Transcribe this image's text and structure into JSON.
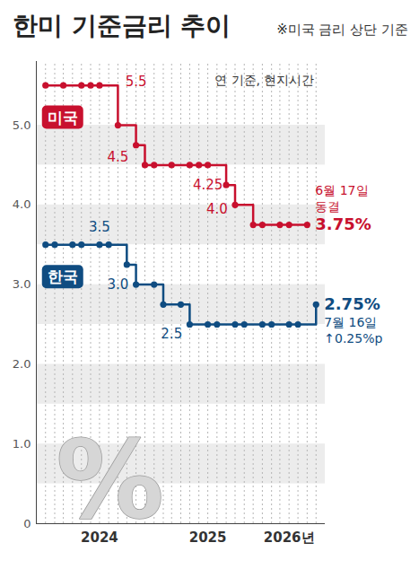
{
  "chart_data": {
    "type": "line",
    "title": "한미 기준금리 추이",
    "note": "※미국 금리 상단 기준",
    "subtitle": "연 기준, 현지시간",
    "symbol": "%",
    "xlim": [
      "2023-12",
      "2026-08"
    ],
    "xticks": [
      {
        "value": "2024-07",
        "label": "2024"
      },
      {
        "value": "2025-07",
        "label": "2025"
      },
      {
        "value": "2026-04",
        "label": "2026년"
      }
    ],
    "ylim": [
      0,
      5.8
    ],
    "yticks": [
      0,
      {
        "value": 1,
        "label": "1.0"
      },
      {
        "value": 2,
        "label": "2.0"
      },
      {
        "value": 3,
        "label": "3.0"
      },
      {
        "value": 4,
        "label": "4.0"
      },
      {
        "value": 5,
        "label": "5.0"
      }
    ],
    "grid": true,
    "series": [
      {
        "name": "미국",
        "color": "#c8102e",
        "line_style": "step",
        "marker": "circle",
        "x": [
          "2024-01",
          "2024-03",
          "2024-05",
          "2024-06",
          "2024-07",
          "2024-09",
          "2024-11",
          "2024-12",
          "2025-01",
          "2025-03",
          "2025-05",
          "2025-06",
          "2025-07",
          "2025-09",
          "2025-10",
          "2025-12",
          "2026-01",
          "2026-03",
          "2026-04",
          "2026-06"
        ],
        "values": [
          5.5,
          5.5,
          5.5,
          5.5,
          5.5,
          5.0,
          4.75,
          4.5,
          4.5,
          4.5,
          4.5,
          4.5,
          4.5,
          4.25,
          4.0,
          3.75,
          3.75,
          3.75,
          3.75,
          3.75
        ],
        "end_label": "3.75%",
        "end_note": [
          "6월 17일",
          "동결"
        ]
      },
      {
        "name": "한국",
        "color": "#0f4c81",
        "line_style": "step",
        "marker": "circle",
        "x": [
          "2024-01",
          "2024-02",
          "2024-04",
          "2024-05",
          "2024-07",
          "2024-08",
          "2024-10",
          "2024-11",
          "2025-01",
          "2025-02",
          "2025-04",
          "2025-05",
          "2025-07",
          "2025-08",
          "2025-10",
          "2025-11",
          "2026-01",
          "2026-02",
          "2026-04",
          "2026-05",
          "2026-07"
        ],
        "values": [
          3.5,
          3.5,
          3.5,
          3.5,
          3.5,
          3.5,
          3.25,
          3.0,
          3.0,
          2.75,
          2.75,
          2.5,
          2.5,
          2.5,
          2.5,
          2.5,
          2.5,
          2.5,
          2.5,
          2.5,
          2.75
        ],
        "end_label": "2.75%",
        "end_note": [
          "7월 16일",
          "↑0.25%p"
        ]
      }
    ],
    "annotations": [
      {
        "series": "미국",
        "text": "5.5",
        "x": "2024-11",
        "y": 5.55
      },
      {
        "series": "미국",
        "text": "4.5",
        "x": "2024-09",
        "y": 4.6
      },
      {
        "series": "미국",
        "text": "4.25",
        "x": "2025-07",
        "y": 4.25
      },
      {
        "series": "미국",
        "text": "4.0",
        "x": "2025-08",
        "y": 3.95
      },
      {
        "series": "한국",
        "text": "3.5",
        "x": "2024-07",
        "y": 3.72
      },
      {
        "series": "한국",
        "text": "3.0",
        "x": "2024-09",
        "y": 3.0
      },
      {
        "series": "한국",
        "text": "2.5",
        "x": "2025-03",
        "y": 2.38
      }
    ]
  }
}
